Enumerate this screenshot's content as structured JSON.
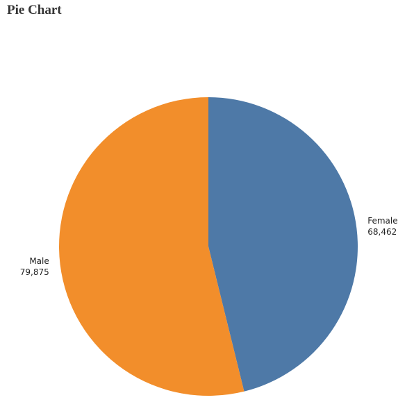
{
  "title": "Pie Chart",
  "chart_data": {
    "type": "pie",
    "title": "Pie Chart",
    "slices": [
      {
        "label": "Female",
        "value": 68462,
        "display_value": "68,462",
        "color": "#4e79a7"
      },
      {
        "label": "Male",
        "value": 79875,
        "display_value": "79,875",
        "color": "#f28e2b"
      }
    ],
    "start": "12 o'clock",
    "direction": "clockwise",
    "legend": "none"
  }
}
